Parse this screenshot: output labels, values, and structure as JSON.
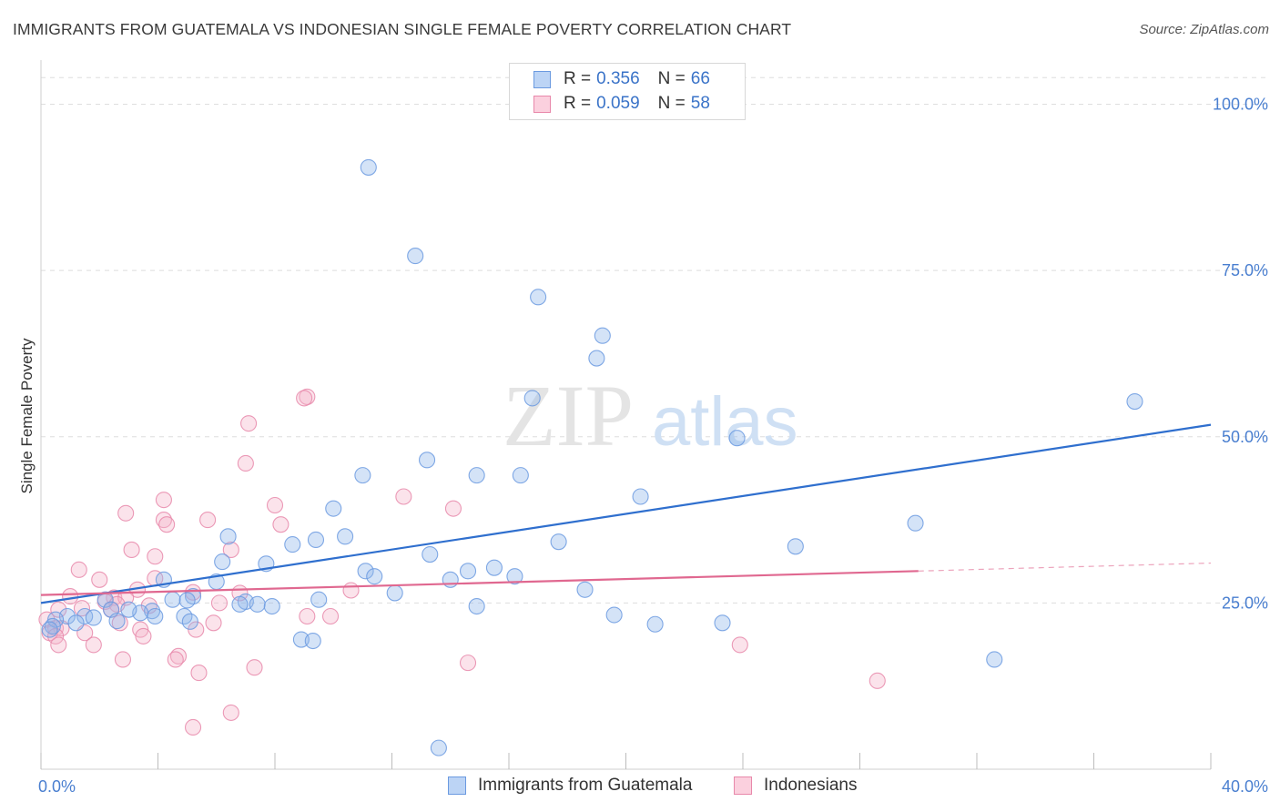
{
  "title": "IMMIGRANTS FROM GUATEMALA VS INDONESIAN SINGLE FEMALE POVERTY CORRELATION CHART",
  "source": "Source: ZipAtlas.com",
  "watermark": {
    "part1": "ZIP",
    "part2": "atlas"
  },
  "legend": {
    "rows": [
      {
        "r_label": "R =",
        "r_value": "0.356",
        "n_label": "N =",
        "n_value": "66",
        "color": "#a9c6f0",
        "border": "#6b9ae0"
      },
      {
        "r_label": "R =",
        "r_value": "0.059",
        "n_label": "N =",
        "n_value": "58",
        "color": "#f6bfd2",
        "border": "#e888aa"
      }
    ]
  },
  "bottom_legend": [
    {
      "label": "Immigrants from Guatemala",
      "color": "#bcd4f5",
      "border": "#6b9ae0"
    },
    {
      "label": "Indonesians",
      "color": "#fbd0de",
      "border": "#e888aa"
    }
  ],
  "chart_data": {
    "type": "scatter",
    "title": "IMMIGRANTS FROM GUATEMALA VS INDONESIAN SINGLE FEMALE POVERTY CORRELATION CHART",
    "xlabel": "",
    "ylabel": "Single Female Poverty",
    "xlim": [
      0,
      40
    ],
    "ylim": [
      0,
      105
    ],
    "x_tick_labels": [
      {
        "value": 0,
        "label": "0.0%"
      },
      {
        "value": 40,
        "label": "40.0%"
      }
    ],
    "y_tick_labels": [
      {
        "value": 25,
        "label": "25.0%"
      },
      {
        "value": 50,
        "label": "50.0%"
      },
      {
        "value": 75,
        "label": "75.0%"
      },
      {
        "value": 100,
        "label": "100.0%"
      }
    ],
    "grid": true,
    "series": [
      {
        "name": "Immigrants from Guatemala",
        "color": "#8fb5ea",
        "stroke": "#6b9ae0",
        "line_color": "#2f6fce",
        "trend": {
          "x0": 0,
          "y0": 25.0,
          "x1": 40,
          "y1": 51.8,
          "dashed_from": null
        },
        "points": [
          [
            11.2,
            90.5
          ],
          [
            12.8,
            77.2
          ],
          [
            17.0,
            71.0
          ],
          [
            19.2,
            65.2
          ],
          [
            19.0,
            61.8
          ],
          [
            16.8,
            55.8
          ],
          [
            37.4,
            55.3
          ],
          [
            23.8,
            49.8
          ],
          [
            13.2,
            46.5
          ],
          [
            11.0,
            44.2
          ],
          [
            14.9,
            44.2
          ],
          [
            16.4,
            44.2
          ],
          [
            20.5,
            41.0
          ],
          [
            10.0,
            39.2
          ],
          [
            29.9,
            37.0
          ],
          [
            6.4,
            35.0
          ],
          [
            10.4,
            35.0
          ],
          [
            9.4,
            34.5
          ],
          [
            8.6,
            33.8
          ],
          [
            17.7,
            34.2
          ],
          [
            25.8,
            33.5
          ],
          [
            13.3,
            32.3
          ],
          [
            6.2,
            31.2
          ],
          [
            7.7,
            30.9
          ],
          [
            15.5,
            30.3
          ],
          [
            14.6,
            29.8
          ],
          [
            11.1,
            29.8
          ],
          [
            11.4,
            29.0
          ],
          [
            16.2,
            29.0
          ],
          [
            14.0,
            28.5
          ],
          [
            6.0,
            28.2
          ],
          [
            4.2,
            28.5
          ],
          [
            12.1,
            26.5
          ],
          [
            18.6,
            27.0
          ],
          [
            5.2,
            26.0
          ],
          [
            4.5,
            25.5
          ],
          [
            5.0,
            25.4
          ],
          [
            7.0,
            25.2
          ],
          [
            9.5,
            25.5
          ],
          [
            2.2,
            25.5
          ],
          [
            6.8,
            24.8
          ],
          [
            7.4,
            24.8
          ],
          [
            7.9,
            24.5
          ],
          [
            3.8,
            23.8
          ],
          [
            3.4,
            23.5
          ],
          [
            3.0,
            24.0
          ],
          [
            2.4,
            24.0
          ],
          [
            14.9,
            24.5
          ],
          [
            4.9,
            23.0
          ],
          [
            3.9,
            23.0
          ],
          [
            1.5,
            23.0
          ],
          [
            19.6,
            23.2
          ],
          [
            1.8,
            22.8
          ],
          [
            0.9,
            23.0
          ],
          [
            2.6,
            22.3
          ],
          [
            5.1,
            22.2
          ],
          [
            0.5,
            22.5
          ],
          [
            1.2,
            22.0
          ],
          [
            21.0,
            21.8
          ],
          [
            23.3,
            22.0
          ],
          [
            0.4,
            21.5
          ],
          [
            0.3,
            21.0
          ],
          [
            8.9,
            19.5
          ],
          [
            9.3,
            19.3
          ],
          [
            32.6,
            16.5
          ],
          [
            13.6,
            3.2
          ]
        ]
      },
      {
        "name": "Indonesians",
        "color": "#f4b5cb",
        "stroke": "#e888aa",
        "line_color": "#e06890",
        "trend": {
          "x0": 0,
          "y0": 26.2,
          "x1": 40,
          "y1": 31.0,
          "dashed_from": 30.0
        },
        "points": [
          [
            9.1,
            56.0
          ],
          [
            9.0,
            55.8
          ],
          [
            7.1,
            52.0
          ],
          [
            7.0,
            46.0
          ],
          [
            12.4,
            41.0
          ],
          [
            4.2,
            40.5
          ],
          [
            8.0,
            39.7
          ],
          [
            14.1,
            39.2
          ],
          [
            2.9,
            38.5
          ],
          [
            4.2,
            37.5
          ],
          [
            5.7,
            37.5
          ],
          [
            4.3,
            36.8
          ],
          [
            8.2,
            36.8
          ],
          [
            3.1,
            33.0
          ],
          [
            6.5,
            33.0
          ],
          [
            3.9,
            32.0
          ],
          [
            1.3,
            30.0
          ],
          [
            2.0,
            28.5
          ],
          [
            3.9,
            28.7
          ],
          [
            3.3,
            27.0
          ],
          [
            10.6,
            26.9
          ],
          [
            6.8,
            26.5
          ],
          [
            5.2,
            26.6
          ],
          [
            1.0,
            26.0
          ],
          [
            2.5,
            25.8
          ],
          [
            2.9,
            25.8
          ],
          [
            2.2,
            25.2
          ],
          [
            2.6,
            24.8
          ],
          [
            6.1,
            25.0
          ],
          [
            3.7,
            24.6
          ],
          [
            1.4,
            24.2
          ],
          [
            2.4,
            24.0
          ],
          [
            0.2,
            22.5
          ],
          [
            2.7,
            22.0
          ],
          [
            5.9,
            22.0
          ],
          [
            9.1,
            23.0
          ],
          [
            9.9,
            23.0
          ],
          [
            0.5,
            21.2
          ],
          [
            3.4,
            21.0
          ],
          [
            0.7,
            21.2
          ],
          [
            5.3,
            21.0
          ],
          [
            0.3,
            20.5
          ],
          [
            1.5,
            20.5
          ],
          [
            3.5,
            20.0
          ],
          [
            0.5,
            20.0
          ],
          [
            0.6,
            18.7
          ],
          [
            1.8,
            18.7
          ],
          [
            23.9,
            18.7
          ],
          [
            4.7,
            17.0
          ],
          [
            2.8,
            16.5
          ],
          [
            4.6,
            16.5
          ],
          [
            14.6,
            16.0
          ],
          [
            7.3,
            15.3
          ],
          [
            5.4,
            14.5
          ],
          [
            28.6,
            13.3
          ],
          [
            6.5,
            8.5
          ],
          [
            5.2,
            6.3
          ],
          [
            0.6,
            24.0
          ]
        ]
      }
    ]
  }
}
